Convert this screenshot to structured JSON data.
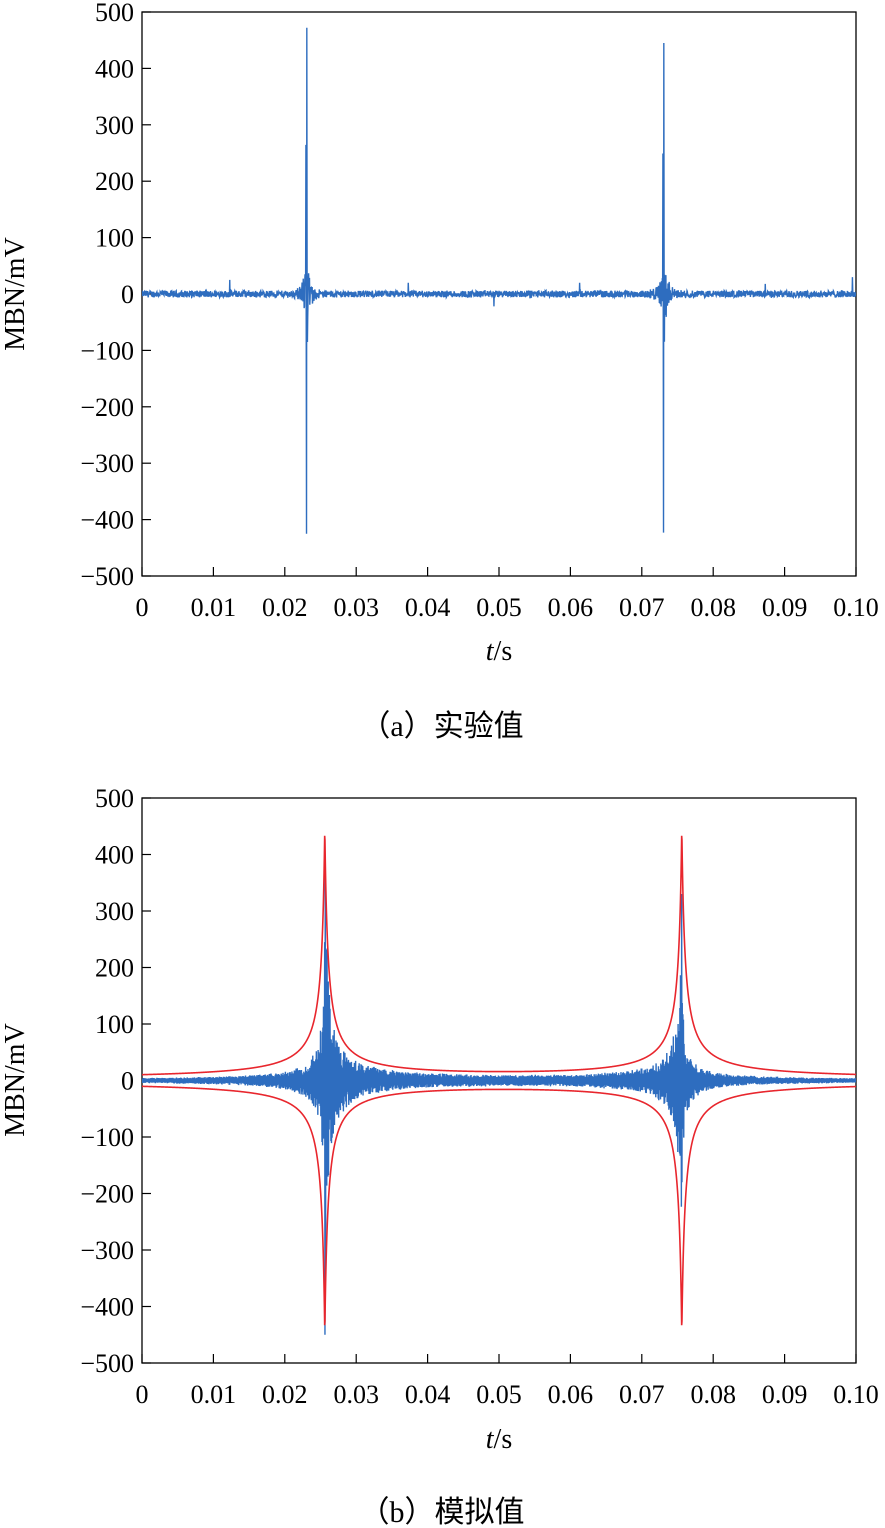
{
  "chart_data": [
    {
      "type": "line",
      "caption": "（a）实验值",
      "xlabel_var": "t",
      "xlabel_unit": "/s",
      "ylabel": "MBN/mV",
      "xlim": [
        0,
        0.1
      ],
      "ylim": [
        -500,
        500
      ],
      "xticks": [
        "0",
        "0.01",
        "0.02",
        "0.03",
        "0.04",
        "0.05",
        "0.06",
        "0.07",
        "0.08",
        "0.09",
        "0.10"
      ],
      "yticks": [
        "500",
        "400",
        "300",
        "200",
        "100",
        "0",
        "−100",
        "−200",
        "−300",
        "−400",
        "−500"
      ],
      "grid": false,
      "series": [
        {
          "color": "#2e6dbf",
          "kind": "noise-bursts",
          "baseline_noise_amplitude": 6,
          "spikes": [
            {
              "t": 0.0123,
              "value": 25
            },
            {
              "t": 0.0373,
              "value": 20
            },
            {
              "t": 0.0493,
              "value": -22
            },
            {
              "t": 0.0613,
              "value": 20
            },
            {
              "t": 0.0873,
              "value": 18
            },
            {
              "t": 0.0995,
              "value": 30
            }
          ],
          "bursts": [
            {
              "t": 0.0231,
              "max": 472,
              "min": -425
            },
            {
              "t": 0.0731,
              "max": 445,
              "min": -423
            }
          ]
        }
      ]
    },
    {
      "type": "line",
      "caption": "（b）模拟值",
      "xlabel_var": "t",
      "xlabel_unit": "/s",
      "ylabel": "MBN/mV",
      "xlim": [
        0,
        0.1
      ],
      "ylim": [
        -500,
        500
      ],
      "xticks": [
        "0",
        "0.01",
        "0.02",
        "0.03",
        "0.04",
        "0.05",
        "0.06",
        "0.07",
        "0.08",
        "0.09",
        "0.10"
      ],
      "yticks": [
        "500",
        "400",
        "300",
        "200",
        "100",
        "0",
        "−100",
        "−200",
        "−300",
        "−400",
        "−500"
      ],
      "grid": false,
      "series": [
        {
          "color": "#2e6dbf",
          "kind": "oscillating-bursts",
          "bursts": [
            {
              "t": 0.0256,
              "max": 245,
              "min": -450
            },
            {
              "t": 0.0756,
              "max": 330,
              "min": -180
            }
          ]
        },
        {
          "color": "#e8262d",
          "kind": "envelope",
          "bursts": [
            {
              "t": 0.0256,
              "max": 445,
              "min": -445
            },
            {
              "t": 0.0756,
              "max": 445,
              "min": -445
            }
          ]
        }
      ]
    }
  ]
}
